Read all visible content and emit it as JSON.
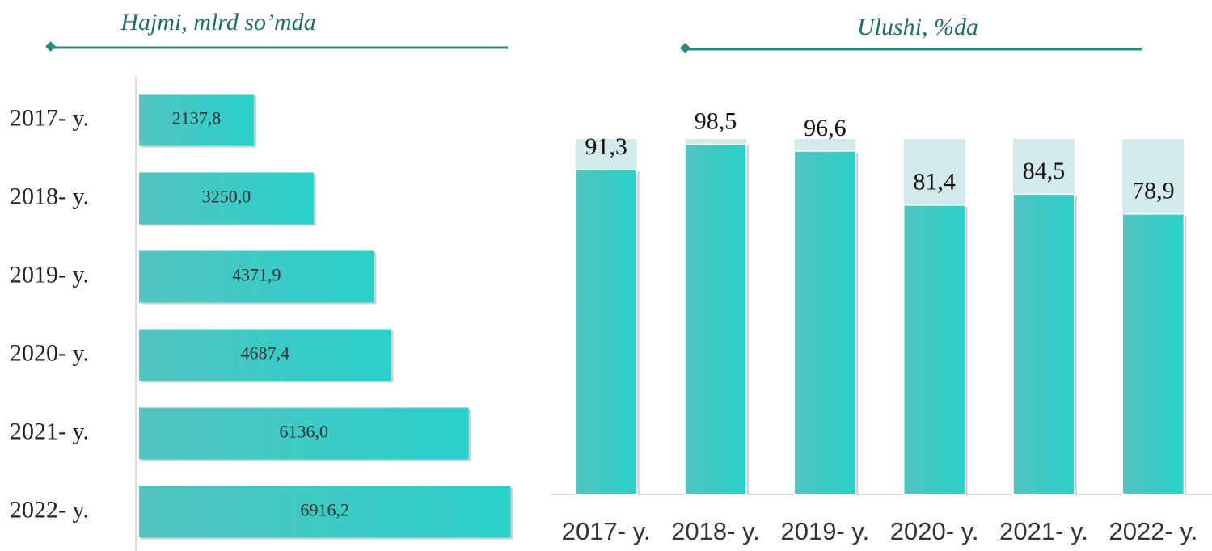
{
  "chart_data": [
    {
      "type": "hbar",
      "title": "Hajmi, mlrd so’mda",
      "categories": [
        "2017- y.",
        "2018- y.",
        "2019- y.",
        "2020- y.",
        "2021- y.",
        "2022- y."
      ],
      "values": [
        2137.8,
        3250.0,
        4371.9,
        4687.4,
        6136.0,
        6916.2
      ],
      "value_labels": [
        "2137,8",
        "3250,0",
        "4371,9",
        "4687,4",
        "6136,0",
        "6916,2"
      ],
      "color": "#3ccac4",
      "xlim": [
        0,
        7000
      ]
    },
    {
      "type": "bar",
      "title": "Ulushi, %da",
      "categories": [
        "2017- y.",
        "2018- y.",
        "2019- y.",
        "2020- y.",
        "2021- y.",
        "2022- y."
      ],
      "values": [
        91.3,
        98.5,
        96.6,
        81.4,
        84.5,
        78.9
      ],
      "value_labels": [
        "91,3",
        "98,5",
        "96,6",
        "81,4",
        "84,5",
        "78,9"
      ],
      "color": "#3ccac4",
      "ylim": [
        0,
        100
      ]
    }
  ]
}
